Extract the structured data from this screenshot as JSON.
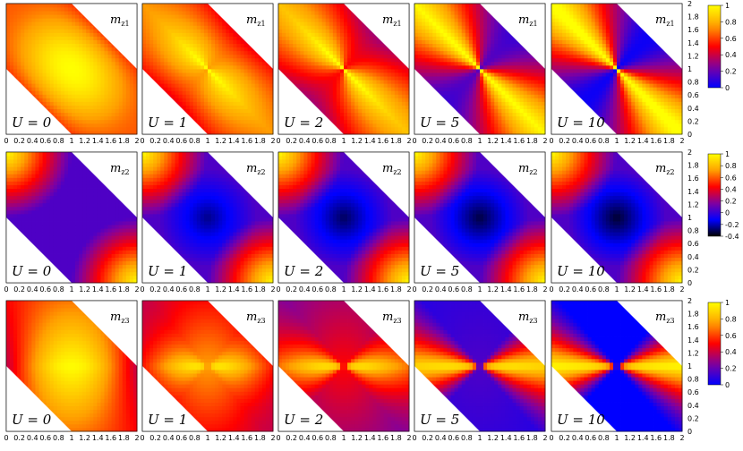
{
  "chart_data": {
    "type": "heatmap",
    "layout": "3 rows x 5 panels, shared color bar per row",
    "x_ticks": [
      "0",
      "0.2",
      "0.4",
      "0.6",
      "0.8",
      "1",
      "1.2",
      "1.4",
      "1.6",
      "1.8",
      "2"
    ],
    "y_ticks": [
      "0",
      "0.2",
      "0.4",
      "0.6",
      "0.8",
      "1",
      "1.2",
      "1.4",
      "1.6",
      "1.8",
      "2"
    ],
    "xlim": [
      0,
      2
    ],
    "ylim": [
      0,
      2
    ],
    "grid": false,
    "colormap": [
      "#000000",
      "#0000ff",
      "#8000a0",
      "#ff0000",
      "#ffa000",
      "#ffff00"
    ],
    "panel_u_values": [
      "0",
      "1",
      "2",
      "5",
      "10"
    ],
    "rows": [
      {
        "quantity": "m",
        "subscript": "z1",
        "colorbar": {
          "min": 0,
          "max": 1,
          "ticks": [
            "0",
            "0.2",
            "0.4",
            "0.6",
            "0.8",
            "1"
          ]
        },
        "panels": [
          {
            "U": "0",
            "sharpness": 0.0
          },
          {
            "U": "1",
            "sharpness": 0.25
          },
          {
            "U": "2",
            "sharpness": 0.5
          },
          {
            "U": "5",
            "sharpness": 0.85
          },
          {
            "U": "10",
            "sharpness": 1.0
          }
        ]
      },
      {
        "quantity": "m",
        "subscript": "z2",
        "colorbar": {
          "min": -0.4,
          "max": 1,
          "ticks": [
            "-0.4",
            "-0.2",
            "0",
            "0.2",
            "0.4",
            "0.6",
            "0.8",
            "1"
          ]
        },
        "panels": [
          {
            "U": "0",
            "center_min": 0.0
          },
          {
            "U": "1",
            "center_min": -0.3
          },
          {
            "U": "2",
            "center_min": -0.35
          },
          {
            "U": "5",
            "center_min": -0.38
          },
          {
            "U": "10",
            "center_min": -0.4
          }
        ]
      },
      {
        "quantity": "m",
        "subscript": "z3",
        "colorbar": {
          "min": 0,
          "max": 1,
          "ticks": [
            "0",
            "0.2",
            "0.4",
            "0.6",
            "0.8",
            "1"
          ]
        },
        "panels": [
          {
            "U": "0",
            "sharpness": 0.0
          },
          {
            "U": "1",
            "sharpness": 0.25
          },
          {
            "U": "2",
            "sharpness": 0.5
          },
          {
            "U": "5",
            "sharpness": 0.85
          },
          {
            "U": "10",
            "sharpness": 1.0
          }
        ]
      }
    ],
    "u_label_prefix": "U = "
  }
}
